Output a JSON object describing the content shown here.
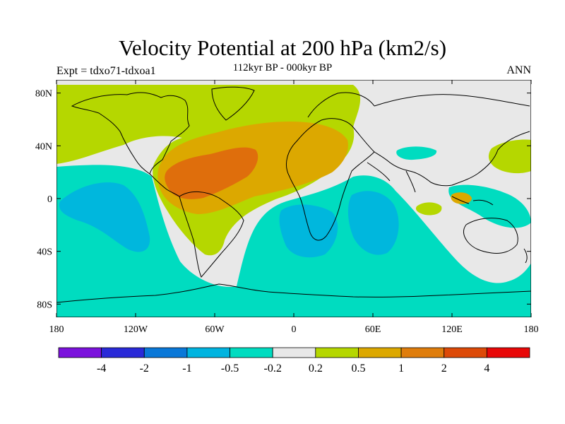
{
  "header": {
    "title": "Velocity Potential at 200 hPa (km2/s)",
    "subtitle": "112kyr BP - 000kyr BP",
    "left_label": "Expt = tdxo71-tdxoa1",
    "right_label": "ANN"
  },
  "map": {
    "projection": "cylindrical-equidistant",
    "lon_range": [
      -180,
      180
    ],
    "lat_range": [
      -90,
      90
    ],
    "lat_ticks": [
      "80N",
      "40N",
      "0",
      "40S",
      "80S"
    ],
    "lon_ticks": [
      "180",
      "120W",
      "60W",
      "0",
      "60E",
      "120E",
      "180"
    ],
    "contour_fill_colors": {
      "strong_positive": "#df6e0c",
      "medium_positive": "#dca800",
      "weak_positive": "#b5d700",
      "near_zero": "#e8e8e8",
      "weak_negative": "#00dcc0",
      "medium_negative": "#00b7dd"
    },
    "coastline_color": "#000000"
  },
  "colorbar": {
    "colors": [
      "#7b12dc",
      "#2a2ad8",
      "#0a78d8",
      "#00b4e0",
      "#00dcc0",
      "#e8e8e8",
      "#b5d700",
      "#dca800",
      "#df7d0c",
      "#dd4a08",
      "#e80808"
    ],
    "labels": [
      "-4",
      "-2",
      "-1",
      "-0.5",
      "-0.2",
      "0.2",
      "0.5",
      "1",
      "2",
      "4"
    ]
  }
}
